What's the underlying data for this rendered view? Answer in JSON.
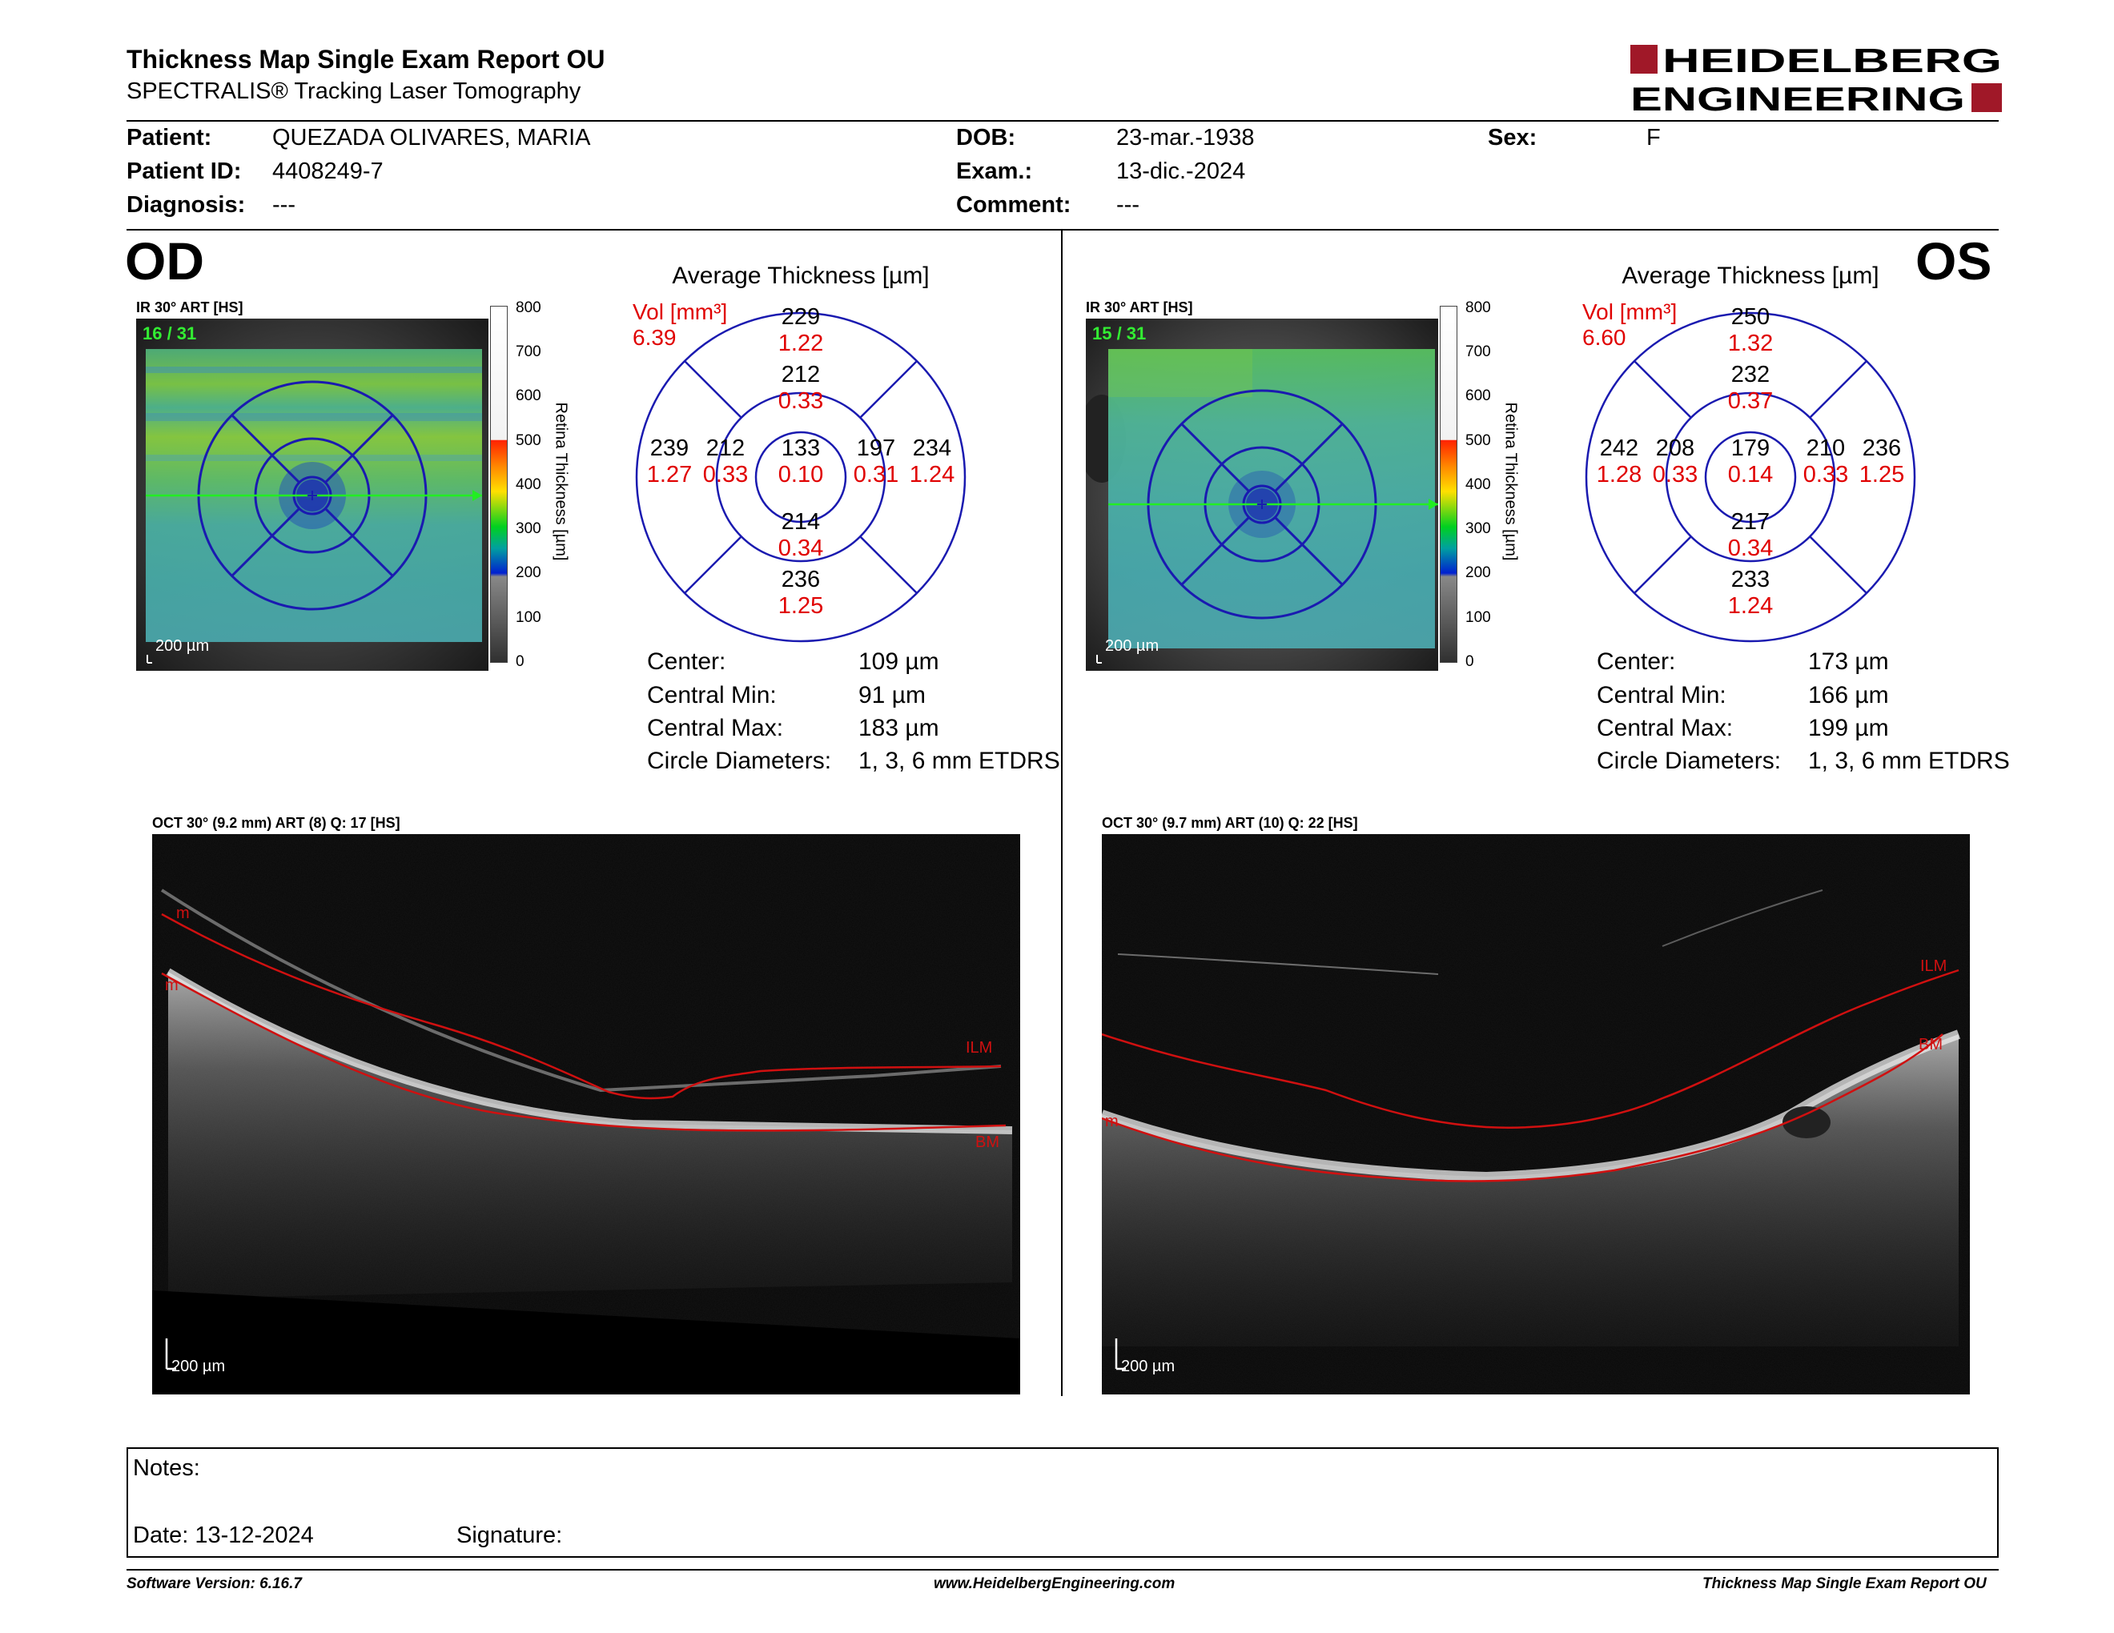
{
  "report": {
    "title": "Thickness Map Single Exam Report OU",
    "subtitle": "SPECTRALIS® Tracking Laser Tomography",
    "brand": "HEIDELBERG ENGINEERING"
  },
  "patient": {
    "patient_label": "Patient:",
    "patient_value": "QUEZADA OLIVARES, MARIA",
    "id_label": "Patient ID:",
    "id_value": "4408249-7",
    "diagnosis_label": "Diagnosis:",
    "diagnosis_value": "---",
    "dob_label": "DOB:",
    "dob_value": "23-mar.-1938",
    "exam_label": "Exam.:",
    "exam_value": "13-dic.-2024",
    "comment_label": "Comment:",
    "comment_value": "---",
    "sex_label": "Sex:",
    "sex_value": "F"
  },
  "od": {
    "eye": "OD",
    "ir_title": "IR 30° ART [HS]",
    "frames": "16 / 31",
    "scale": "200 µm",
    "avg_title": "Average Thickness [µm]",
    "vol_label": "Vol [mm³]",
    "vol_value": "6.39",
    "grid": {
      "center_t": "133",
      "center_v": "0.10",
      "inner_sup_t": "212",
      "inner_sup_v": "0.33",
      "inner_inf_t": "214",
      "inner_inf_v": "0.34",
      "inner_left_t": "212",
      "inner_left_v": "0.33",
      "inner_right_t": "197",
      "inner_right_v": "0.31",
      "outer_sup_t": "229",
      "outer_sup_v": "1.22",
      "outer_inf_t": "236",
      "outer_inf_v": "1.25",
      "outer_left_t": "239",
      "outer_left_v": "1.27",
      "outer_right_t": "234",
      "outer_right_v": "1.24"
    },
    "stats": {
      "center_label": "Center:",
      "center_value": "109 µm",
      "min_label": "Central Min:",
      "min_value": "91 µm",
      "max_label": "Central Max:",
      "max_value": "183 µm",
      "diam_label": "Circle Diameters:",
      "diam_value": "1, 3, 6 mm ETDRS"
    },
    "oct_title": "OCT 30° (9.2 mm) ART (8) Q: 17 [HS]",
    "oct_scale": "200 µm",
    "ilm": "ILM",
    "bm": "BM"
  },
  "os": {
    "eye": "OS",
    "ir_title": "IR 30° ART [HS]",
    "frames": "15 / 31",
    "scale": "200 µm",
    "avg_title": "Average Thickness [µm]",
    "vol_label": "Vol [mm³]",
    "vol_value": "6.60",
    "grid": {
      "center_t": "179",
      "center_v": "0.14",
      "inner_sup_t": "232",
      "inner_sup_v": "0.37",
      "inner_inf_t": "217",
      "inner_inf_v": "0.34",
      "inner_left_t": "208",
      "inner_left_v": "0.33",
      "inner_right_t": "210",
      "inner_right_v": "0.33",
      "outer_sup_t": "250",
      "outer_sup_v": "1.32",
      "outer_inf_t": "233",
      "outer_inf_v": "1.24",
      "outer_left_t": "242",
      "outer_left_v": "1.28",
      "outer_right_t": "236",
      "outer_right_v": "1.25"
    },
    "stats": {
      "center_label": "Center:",
      "center_value": "173 µm",
      "min_label": "Central Min:",
      "min_value": "166 µm",
      "max_label": "Central Max:",
      "max_value": "199 µm",
      "diam_label": "Circle Diameters:",
      "diam_value": "1, 3, 6 mm ETDRS"
    },
    "oct_title": "OCT 30° (9.7 mm) ART (10) Q: 22 [HS]",
    "oct_scale": "200 µm",
    "ilm": "ILM",
    "bm": "BM"
  },
  "colorbar": {
    "ticks": [
      "800",
      "700",
      "600",
      "500",
      "400",
      "300",
      "200",
      "100",
      "0"
    ],
    "label": "Retina Thickness [µm]"
  },
  "notes": {
    "notes_label": "Notes:",
    "date_label": "Date: 13-12-2024",
    "signature_label": "Signature:"
  },
  "footer": {
    "software": "Software Version: 6.16.7",
    "website": "www.HeidelbergEngineering.com",
    "report": "Thickness Map Single Exam Report OU"
  },
  "colors": {
    "grid_blue": "#1a1ab0",
    "value_red": "#e00000",
    "logo_red": "#a01828",
    "frame_green": "#33ee33"
  }
}
